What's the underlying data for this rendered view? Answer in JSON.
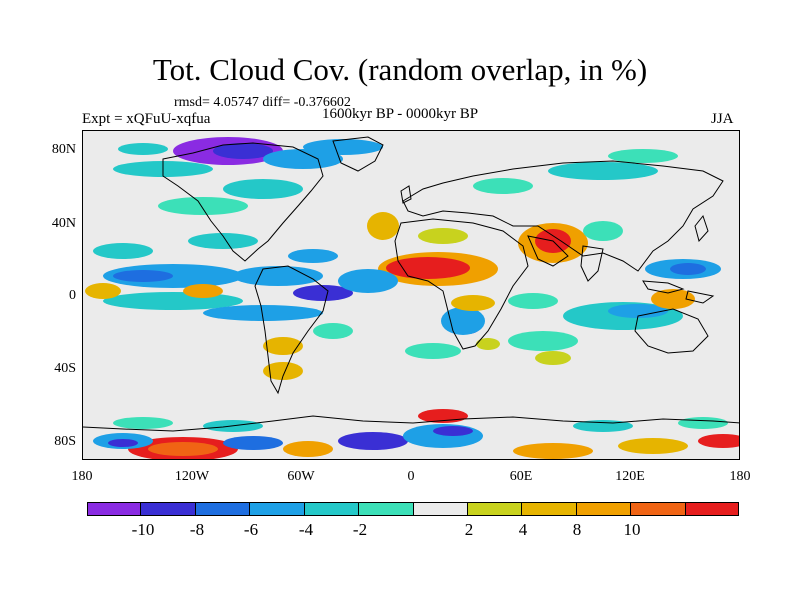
{
  "title": "Tot. Cloud Cov. (random overlap, in %)",
  "stats": "rmsd= 4.05747  diff= -0.376602",
  "experiment": "Expt = xQFuU-xqfua",
  "period": "1600kyr BP - 0000kyr BP",
  "season": "JJA",
  "map": {
    "lat_ticks": [
      "80N",
      "40N",
      "0",
      "40S",
      "80S"
    ],
    "lon_ticks": [
      "180",
      "120W",
      "60W",
      "0",
      "60E",
      "120E",
      "180"
    ]
  },
  "colorbar": {
    "colors": [
      "#8a2be2",
      "#3a2fd4",
      "#1e6ee0",
      "#1ea0e6",
      "#24c8c8",
      "#3ce0b8",
      "#ebebeb",
      "#c8d21e",
      "#e6b400",
      "#f0a000",
      "#f06414",
      "#e61e1e"
    ],
    "labels": [
      "-10",
      "-8",
      "-6",
      "-4",
      "-2",
      "2",
      "4",
      "8",
      "10"
    ]
  }
}
